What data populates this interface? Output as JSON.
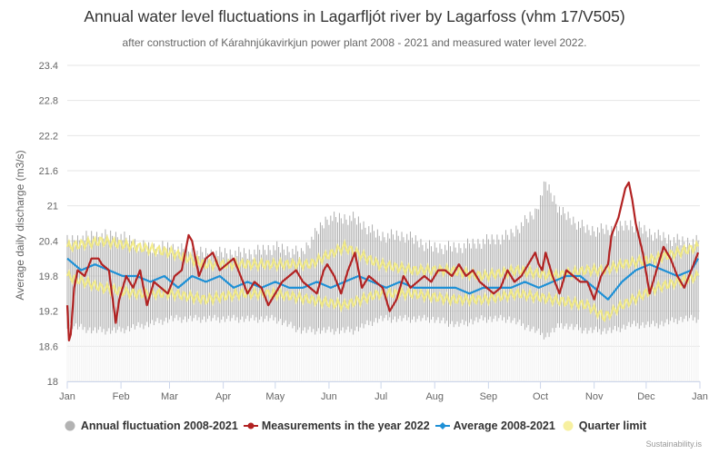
{
  "chart_data": {
    "type": "line",
    "title": "Annual water level fluctuations in Lagarfljót river by Lagarfoss (vhm 17/V505)",
    "subtitle": "after construction of Kárahnjúkavirkjun power plant 2008 - 2021 and measured water level 2022.",
    "ylabel": "Average daily discharge (m3/s)",
    "xlabel": "",
    "ylim": [
      18,
      23.4
    ],
    "yticks": [
      "18",
      "18.6",
      "19.2",
      "19.8",
      "20.4",
      "21",
      "21.6",
      "22.2",
      "22.8",
      "23.4"
    ],
    "xticks": [
      "Jan",
      "Feb",
      "Mar",
      "Apr",
      "May",
      "Jun",
      "Jul",
      "Aug",
      "Sep",
      "Oct",
      "Nov",
      "Dec",
      "Jan"
    ],
    "grid": "horizontal",
    "legend_position": "bottom",
    "series": [
      {
        "name": "Annual fluctuation 2008-2021",
        "kind": "range",
        "color": "#999999",
        "x_day": [
          0,
          15,
          30,
          45,
          60,
          75,
          90,
          105,
          120,
          135,
          150,
          165,
          180,
          195,
          210,
          225,
          240,
          255,
          270,
          276,
          285,
          300,
          315,
          325,
          340,
          355,
          364
        ],
        "low": [
          18.9,
          18.8,
          18.8,
          18.9,
          19.0,
          19.0,
          19.0,
          19.0,
          19.0,
          18.8,
          18.8,
          18.8,
          19.0,
          19.0,
          19.0,
          18.9,
          19.0,
          19.0,
          18.8,
          18.7,
          18.9,
          18.8,
          18.8,
          18.9,
          18.9,
          19.0,
          19.0
        ],
        "high": [
          20.5,
          20.6,
          20.6,
          20.4,
          20.4,
          20.3,
          20.3,
          20.3,
          20.4,
          20.3,
          20.9,
          20.9,
          20.6,
          20.6,
          20.4,
          20.4,
          20.5,
          20.6,
          21.0,
          21.5,
          21.0,
          20.7,
          20.7,
          20.8,
          20.6,
          20.5,
          20.5
        ]
      },
      {
        "name": "Measurements in the year 2022",
        "kind": "line",
        "color": "#b22222",
        "x_day": [
          0,
          1,
          2,
          4,
          6,
          10,
          14,
          18,
          20,
          24,
          28,
          30,
          34,
          38,
          42,
          46,
          50,
          54,
          58,
          62,
          66,
          70,
          72,
          76,
          80,
          84,
          88,
          92,
          96,
          100,
          104,
          108,
          112,
          116,
          120,
          124,
          128,
          132,
          136,
          140,
          144,
          148,
          150,
          154,
          158,
          162,
          166,
          170,
          174,
          178,
          182,
          186,
          190,
          194,
          198,
          202,
          206,
          210,
          214,
          218,
          222,
          226,
          230,
          234,
          238,
          242,
          246,
          250,
          254,
          258,
          262,
          266,
          270,
          272,
          274,
          276,
          280,
          284,
          288,
          292,
          296,
          300,
          304,
          308,
          312,
          314,
          318,
          322,
          324,
          326,
          328,
          332,
          336,
          340,
          344,
          348,
          352,
          356,
          360,
          364
        ],
        "y": [
          19.3,
          18.7,
          18.8,
          19.6,
          19.9,
          19.8,
          20.1,
          20.1,
          20.0,
          19.9,
          19.0,
          19.4,
          19.8,
          19.6,
          19.9,
          19.3,
          19.7,
          19.6,
          19.5,
          19.8,
          19.9,
          20.5,
          20.4,
          19.8,
          20.1,
          20.2,
          19.9,
          20.0,
          20.1,
          19.8,
          19.5,
          19.7,
          19.6,
          19.3,
          19.5,
          19.7,
          19.8,
          19.9,
          19.7,
          19.6,
          19.5,
          19.9,
          20.0,
          19.8,
          19.5,
          19.9,
          20.2,
          19.6,
          19.8,
          19.7,
          19.6,
          19.2,
          19.4,
          19.8,
          19.6,
          19.7,
          19.8,
          19.7,
          19.9,
          19.9,
          19.8,
          20.0,
          19.8,
          19.9,
          19.7,
          19.6,
          19.5,
          19.6,
          19.9,
          19.7,
          19.8,
          20.0,
          20.2,
          20.0,
          19.9,
          20.2,
          19.8,
          19.5,
          19.9,
          19.8,
          19.7,
          19.7,
          19.4,
          19.8,
          20.0,
          20.5,
          20.8,
          21.3,
          21.4,
          21.1,
          20.7,
          20.2,
          19.5,
          19.9,
          20.3,
          20.1,
          19.8,
          19.6,
          19.9,
          20.2
        ]
      },
      {
        "name": "Average 2008-2021",
        "kind": "line",
        "color": "#1e90d6",
        "x_day": [
          0,
          8,
          16,
          24,
          32,
          40,
          48,
          56,
          64,
          72,
          80,
          88,
          96,
          104,
          112,
          120,
          128,
          136,
          144,
          152,
          160,
          168,
          176,
          184,
          192,
          200,
          208,
          216,
          224,
          232,
          240,
          248,
          256,
          264,
          272,
          280,
          288,
          296,
          304,
          312,
          320,
          328,
          336,
          344,
          352,
          360,
          364
        ],
        "y": [
          20.1,
          19.9,
          20.0,
          19.9,
          19.8,
          19.8,
          19.7,
          19.8,
          19.6,
          19.8,
          19.7,
          19.8,
          19.6,
          19.7,
          19.6,
          19.7,
          19.6,
          19.6,
          19.7,
          19.6,
          19.7,
          19.8,
          19.7,
          19.6,
          19.7,
          19.6,
          19.6,
          19.6,
          19.6,
          19.5,
          19.6,
          19.6,
          19.6,
          19.7,
          19.6,
          19.7,
          19.8,
          19.8,
          19.6,
          19.4,
          19.7,
          19.9,
          20.0,
          19.9,
          19.8,
          19.9,
          20.1
        ]
      },
      {
        "name": "Quarter limit",
        "kind": "band",
        "color": "#f5ec7a",
        "x_day": [
          0,
          20,
          40,
          60,
          80,
          100,
          120,
          140,
          160,
          180,
          200,
          220,
          240,
          260,
          280,
          300,
          310,
          320,
          340,
          364
        ],
        "low": [
          19.8,
          19.6,
          19.5,
          19.5,
          19.4,
          19.5,
          19.5,
          19.4,
          19.3,
          19.5,
          19.5,
          19.4,
          19.4,
          19.5,
          19.4,
          19.3,
          19.1,
          19.3,
          19.6,
          19.8
        ],
        "high": [
          20.3,
          20.4,
          20.3,
          20.2,
          20.0,
          20.0,
          20.0,
          20.0,
          20.3,
          20.0,
          19.9,
          19.9,
          19.8,
          19.9,
          19.8,
          19.9,
          19.9,
          20.0,
          20.1,
          20.3
        ]
      }
    ]
  },
  "credits": "Sustainability.is"
}
